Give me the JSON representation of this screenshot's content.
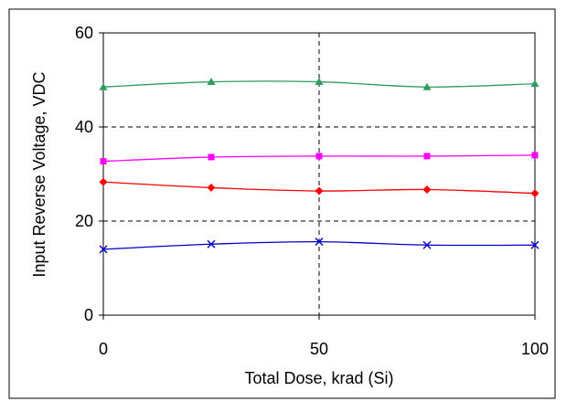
{
  "chart_data": {
    "type": "line",
    "title": "",
    "xlabel": "Total Dose, krad (Si)",
    "ylabel": "Input Reverse Voltage, VDC",
    "xlim": [
      0,
      100
    ],
    "ylim": [
      0,
      60
    ],
    "xticks": [
      0,
      50,
      100
    ],
    "yticks": [
      0,
      20,
      40,
      60
    ],
    "grid": {
      "horizontal": true,
      "vertical": true,
      "style": "dashed"
    },
    "legend": "none",
    "x": [
      0,
      25,
      50,
      75,
      100
    ],
    "series": [
      {
        "color": "#2e9b5f",
        "marker": "triangle",
        "values": [
          48.5,
          49.6,
          49.6,
          48.5,
          49.2
        ]
      },
      {
        "color": "#ff00ff",
        "marker": "square",
        "values": [
          32.7,
          33.6,
          33.8,
          33.8,
          34.0
        ]
      },
      {
        "color": "#ff0000",
        "marker": "diamond",
        "values": [
          28.3,
          27.1,
          26.4,
          26.7,
          25.9
        ]
      },
      {
        "color": "#0000cc",
        "marker": "x",
        "values": [
          14.0,
          15.1,
          15.6,
          14.9,
          14.9
        ]
      }
    ]
  }
}
